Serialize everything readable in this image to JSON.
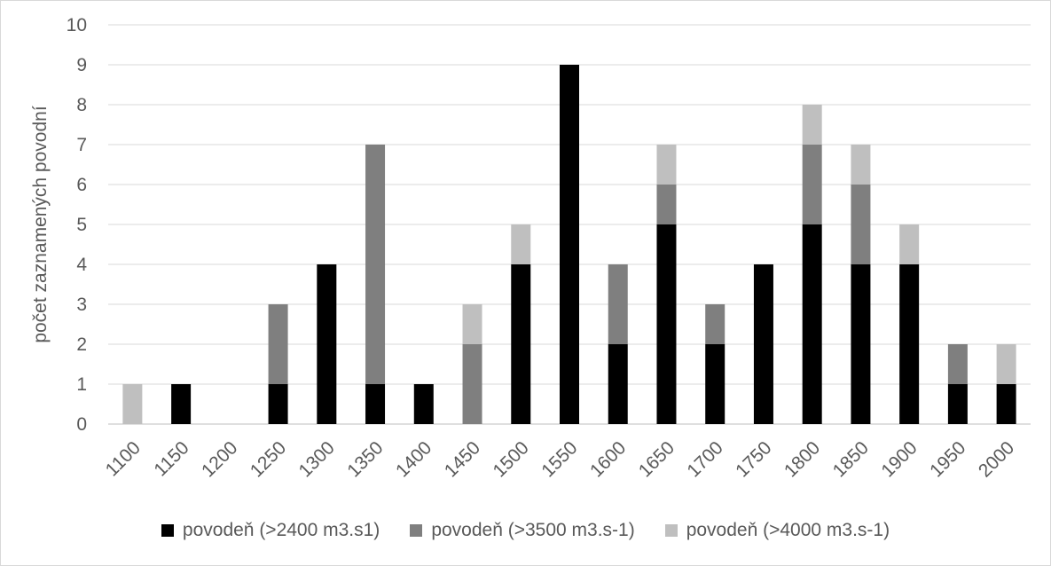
{
  "chart_data": {
    "type": "bar",
    "stacked": true,
    "title": "",
    "xlabel": "",
    "ylabel": "počet zaznamených povodní",
    "ylim": [
      0,
      10
    ],
    "yticks": [
      "0",
      "1",
      "2",
      "3",
      "4",
      "5",
      "6",
      "7",
      "8",
      "9",
      "10"
    ],
    "grid": true,
    "legend_position": "bottom",
    "categories": [
      "1100",
      "1150",
      "1200",
      "1250",
      "1300",
      "1350",
      "1400",
      "1450",
      "1500",
      "1550",
      "1600",
      "1650",
      "1700",
      "1750",
      "1800",
      "1850",
      "1900",
      "1950",
      "2000"
    ],
    "series": [
      {
        "name": "povodeň (>2400 m3.s1)",
        "color": "#000000",
        "values": [
          0,
          1,
          0,
          1,
          4,
          1,
          1,
          0,
          4,
          9,
          2,
          5,
          2,
          4,
          5,
          4,
          4,
          1,
          1
        ]
      },
      {
        "name": "povodeň (>3500 m3.s-1)",
        "color": "#7f7f7f",
        "values": [
          0,
          0,
          0,
          2,
          0,
          6,
          0,
          2,
          0,
          0,
          2,
          1,
          1,
          0,
          2,
          2,
          0,
          1,
          0
        ]
      },
      {
        "name": "povodeň (>4000 m3.s-1)",
        "color": "#bfbfbf",
        "values": [
          1,
          0,
          0,
          0,
          0,
          0,
          0,
          1,
          1,
          0,
          0,
          1,
          0,
          0,
          1,
          1,
          1,
          0,
          1
        ]
      }
    ]
  }
}
